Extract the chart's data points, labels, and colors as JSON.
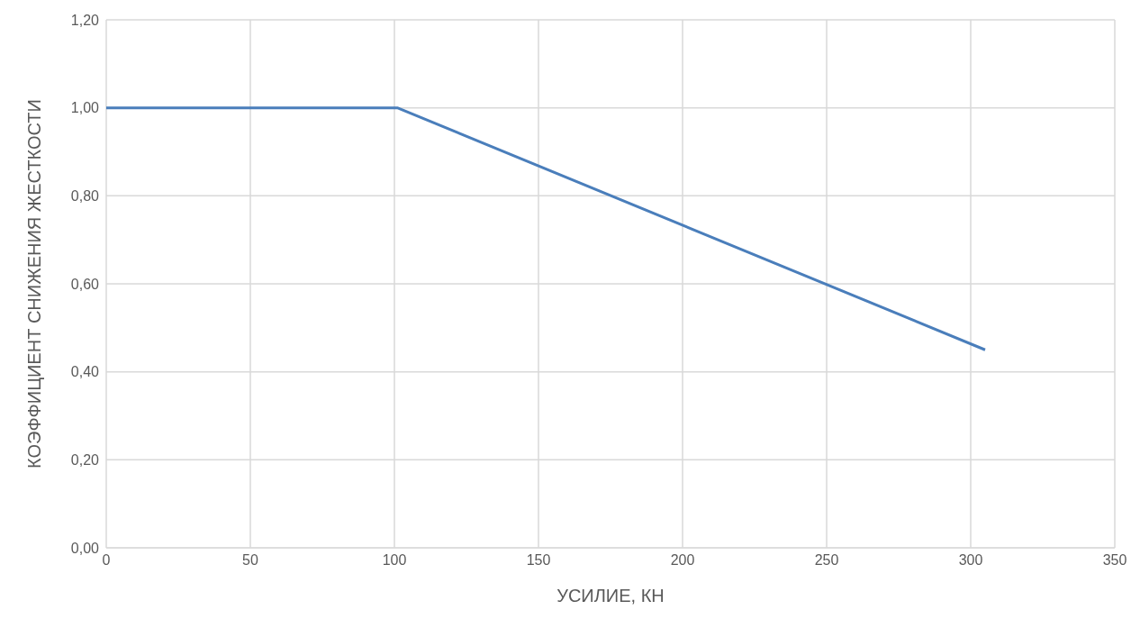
{
  "chart_data": {
    "type": "line",
    "xlabel": "УСИЛИЕ, КН",
    "ylabel": "КОЭФФИЦИЕНТ СНИЖЕНИЯ ЖЕСТКОСТИ",
    "x": [
      0,
      101,
      305
    ],
    "series": [
      {
        "color": "#4a7ebb",
        "values": [
          1.0,
          1.0,
          0.45
        ]
      }
    ],
    "xlim": [
      0,
      350
    ],
    "xticks": [
      0,
      50,
      100,
      150,
      200,
      250,
      300,
      350
    ],
    "ylim": [
      0,
      1.2
    ],
    "yticks": [
      {
        "value": 0,
        "label": "0,00"
      },
      {
        "value": 0.2,
        "label": "0,20"
      },
      {
        "value": 0.4,
        "label": "0,40"
      },
      {
        "value": 0.6,
        "label": "0,60"
      },
      {
        "value": 0.8,
        "label": "0,80"
      },
      {
        "value": 1.0,
        "label": "1,00"
      },
      {
        "value": 1.2,
        "label": "1,20"
      }
    ],
    "grid": true,
    "marker": "none",
    "line_style": "solid",
    "legend": false
  }
}
